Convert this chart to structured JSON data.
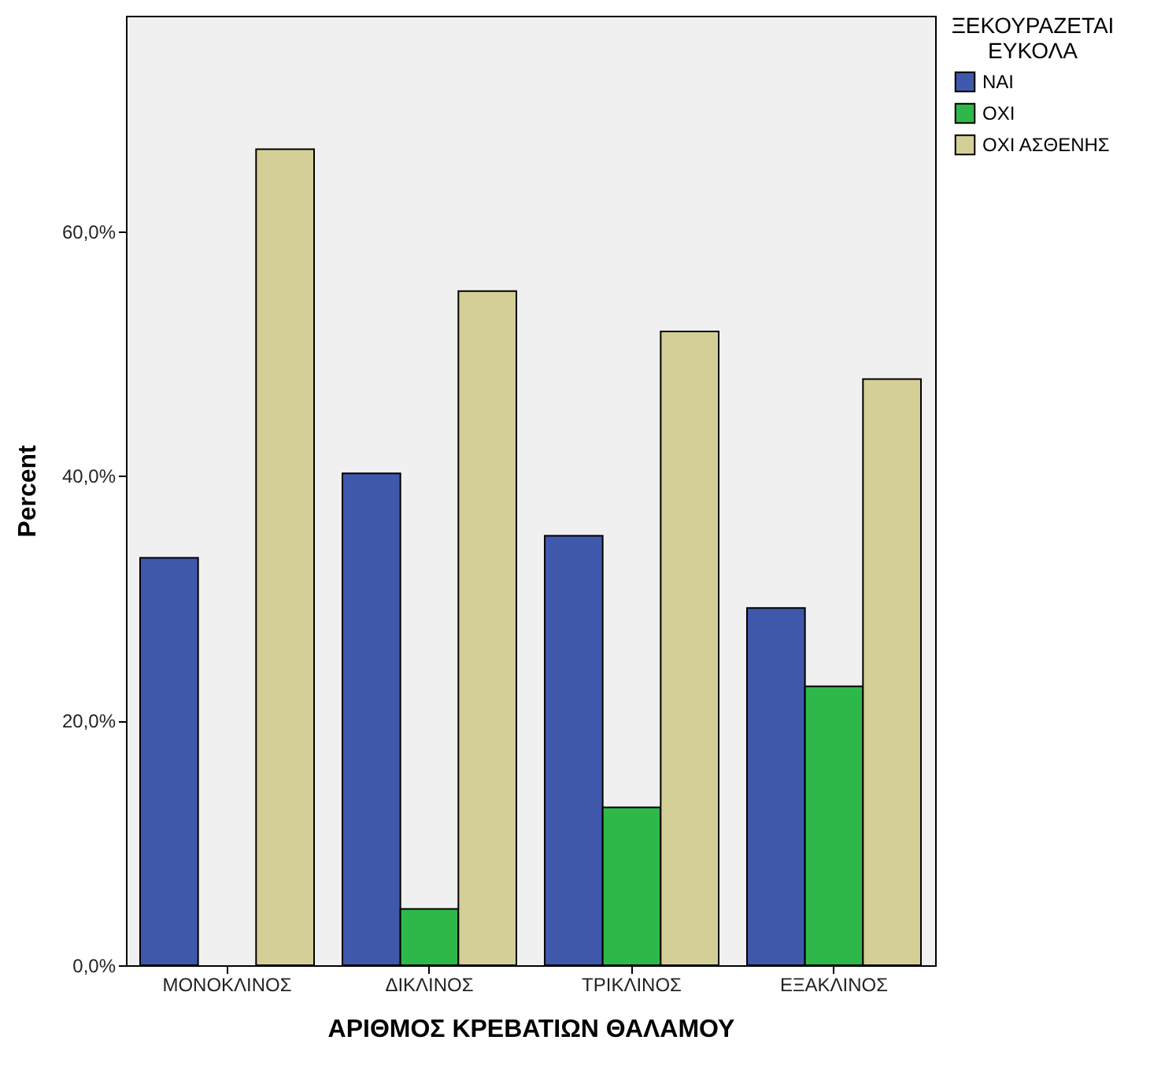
{
  "chart_data": {
    "type": "bar",
    "xlabel": "ΑΡΙΘΜΟΣ ΚΡΕΒΑΤΙΩΝ ΘΑΛΑΜΟΥ",
    "ylabel": "Percent",
    "legend_title": "ΞΕΚΟΥΡΑΖΕΤΑΙ ΕΥΚΟΛΑ",
    "categories": [
      "ΜΟΝΟΚΛΙΝΟΣ",
      "ΔΙΚΛΙΝΟΣ",
      "ΤΡΙΚΛΙΝΟΣ",
      "ΕΞΑΚΛΙΝΟΣ"
    ],
    "series": [
      {
        "name": "ΝΑΙ",
        "color": "#3f58ab",
        "values": [
          33.3,
          40.2,
          35.1,
          29.2
        ]
      },
      {
        "name": "ΟΧΙ",
        "color": "#2fb84a",
        "values": [
          null,
          4.6,
          12.9,
          22.8
        ]
      },
      {
        "name": "ΟΧΙ ΑΣΘΕΝΗΣ",
        "color": "#d4cf96",
        "values": [
          66.7,
          55.1,
          51.8,
          47.9
        ]
      }
    ],
    "ylim": [
      0,
      77.6
    ],
    "yticks": [
      {
        "value": 0,
        "label": "0,0%"
      },
      {
        "value": 20,
        "label": "20,0%"
      },
      {
        "value": 40,
        "label": "40,0%"
      },
      {
        "value": 60,
        "label": "60,0%"
      }
    ],
    "grid": false,
    "legend": "right"
  }
}
